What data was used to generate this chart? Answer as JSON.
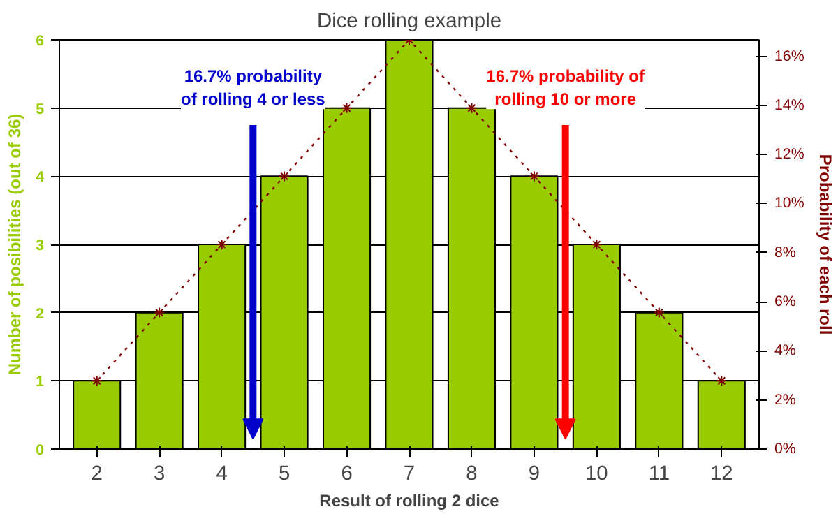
{
  "chart_data": {
    "type": "bar",
    "title": "Dice rolling example",
    "xlabel": "Result of rolling 2 dice",
    "ylabel": "Number of posibilities (out of 36)",
    "y2label": "Probability of each roll",
    "categories": [
      "2",
      "3",
      "4",
      "5",
      "6",
      "7",
      "8",
      "9",
      "10",
      "11",
      "12"
    ],
    "series": [
      {
        "color": "#99cc00",
        "values": [
          1,
          2,
          3,
          4,
          5,
          6,
          5,
          4,
          3,
          2,
          1
        ]
      },
      {
        "type": "line",
        "axis": "y2",
        "color": "#800000",
        "values": [
          2.78,
          5.56,
          8.33,
          11.11,
          13.89,
          16.67,
          13.89,
          11.11,
          8.33,
          5.56,
          2.78
        ]
      }
    ],
    "ylim": [
      0,
      6
    ],
    "yticks": [
      0,
      1,
      2,
      3,
      4,
      5,
      6
    ],
    "y2lim": [
      0,
      16.67
    ],
    "y2ticks": [
      {
        "value": 0,
        "label": "0%"
      },
      {
        "value": 2,
        "label": "2%"
      },
      {
        "value": 4,
        "label": "4%"
      },
      {
        "value": 6,
        "label": "6%"
      },
      {
        "value": 8,
        "label": "8%"
      },
      {
        "value": 10,
        "label": "10%"
      },
      {
        "value": 12,
        "label": "12%"
      },
      {
        "value": 14,
        "label": "14%"
      },
      {
        "value": 16,
        "label": "16%"
      }
    ],
    "grid": "y",
    "marker": "cross",
    "line_style": "dotted",
    "annotations": [
      "16.7% probability\nof rolling 4 or less",
      "16.7% probability of\nrolling 10 or more"
    ]
  }
}
